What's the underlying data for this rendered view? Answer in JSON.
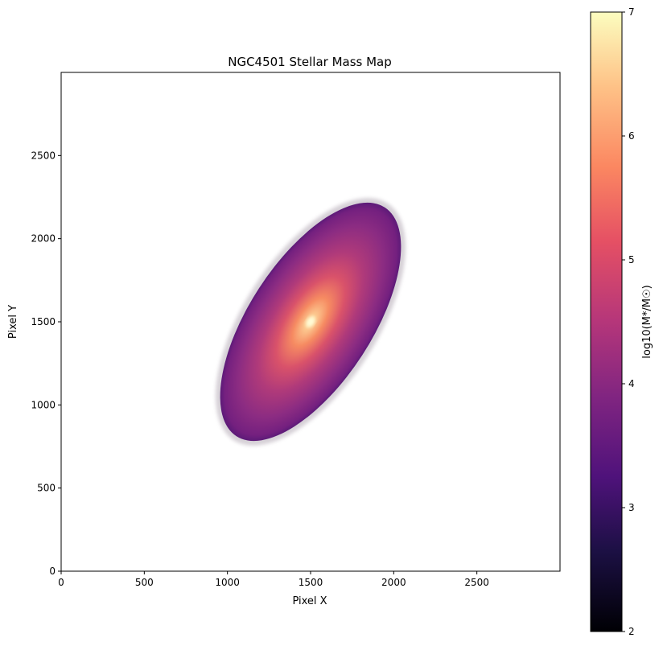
{
  "chart_data": {
    "type": "heatmap",
    "title": "NGC4501 Stellar Mass Map",
    "xlabel": "Pixel X",
    "ylabel": "Pixel Y",
    "xlim": [
      0,
      3000
    ],
    "ylim": [
      0,
      3000
    ],
    "xticks": [
      0,
      500,
      1000,
      1500,
      2000,
      2500
    ],
    "yticks": [
      0,
      500,
      1000,
      1500,
      2000,
      2500
    ],
    "colorbar": {
      "label": "log10(M*/M☉)",
      "colormap": "magma",
      "range": [
        2,
        7
      ],
      "ticks": [
        2,
        3,
        4,
        5,
        6,
        7
      ]
    },
    "galaxy": {
      "center": [
        1500,
        1500
      ],
      "semi_major": 820,
      "semi_minor": 370,
      "position_angle_deg": 57,
      "peak_value": 6.8,
      "edge_value": 3.7
    },
    "grid": false
  }
}
